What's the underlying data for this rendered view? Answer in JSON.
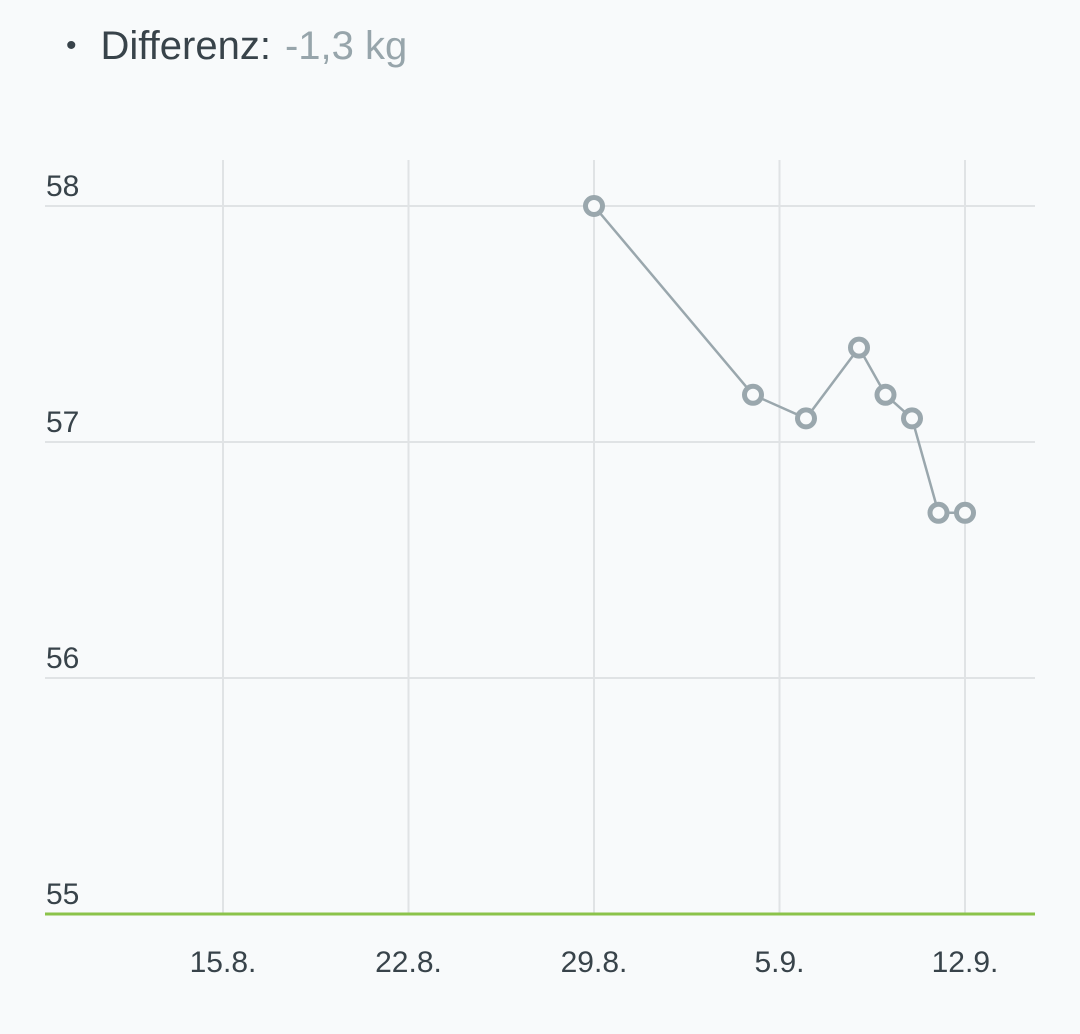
{
  "summary": {
    "bullet": "•",
    "label": "Differenz:",
    "value": "-1,3 kg"
  },
  "colors": {
    "line": "#9aa7ad",
    "grid": "#e0e3e5",
    "goal": "#8bc34a",
    "text": "#38434a",
    "muted": "#97a5ab"
  },
  "chart_data": {
    "type": "line",
    "x_axis": {
      "ticks": [
        {
          "date": "2023-08-15",
          "label": "15.8."
        },
        {
          "date": "2023-08-22",
          "label": "22.8."
        },
        {
          "date": "2023-08-29",
          "label": "29.8."
        },
        {
          "date": "2023-09-05",
          "label": "5.9."
        },
        {
          "date": "2023-09-12",
          "label": "12.9."
        }
      ],
      "range": [
        "2023-08-07",
        "2023-09-14"
      ]
    },
    "y_axis": {
      "ticks": [
        58,
        57,
        56,
        55
      ],
      "range": [
        55,
        58
      ]
    },
    "goal_value": 55,
    "grid": true,
    "series": [
      {
        "points": [
          {
            "x": "2023-08-29",
            "y": 58.0
          },
          {
            "x": "2023-09-04",
            "y": 57.2
          },
          {
            "x": "2023-09-06",
            "y": 57.1
          },
          {
            "x": "2023-09-08",
            "y": 57.4
          },
          {
            "x": "2023-09-09",
            "y": 57.2
          },
          {
            "x": "2023-09-10",
            "y": 57.1
          },
          {
            "x": "2023-09-11",
            "y": 56.7
          },
          {
            "x": "2023-09-12",
            "y": 56.7
          }
        ]
      }
    ]
  }
}
